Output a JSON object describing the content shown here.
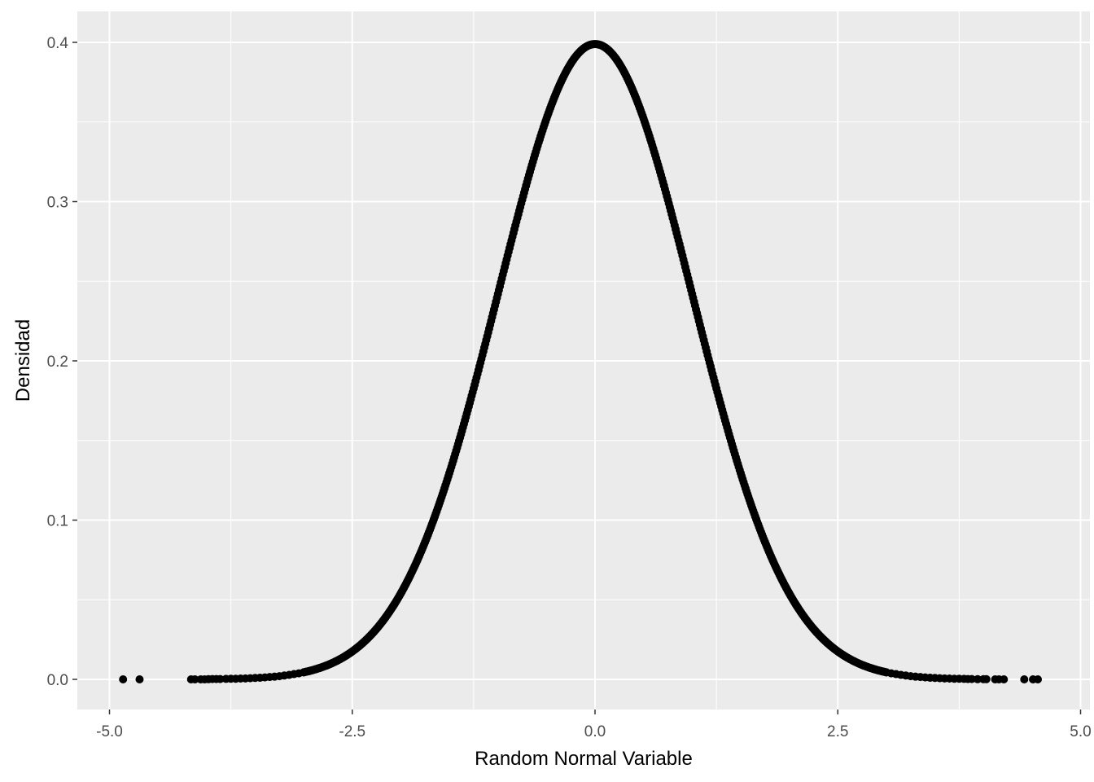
{
  "chart_data": {
    "type": "scatter",
    "title": "",
    "xlabel": "Random Normal Variable",
    "ylabel": "Densidad",
    "xlim": [
      -5.0,
      5.0
    ],
    "ylim": [
      -0.02,
      0.4
    ],
    "x_ticks": [
      -5.0,
      -2.5,
      0.0,
      2.5,
      5.0
    ],
    "x_tick_labels": [
      "-5.0",
      "-2.5",
      "0.0",
      "2.5",
      "5.0"
    ],
    "y_ticks": [
      0.0,
      0.1,
      0.2,
      0.3,
      0.4
    ],
    "y_tick_labels": [
      "0.0",
      "0.1",
      "0.2",
      "0.3",
      "0.4"
    ],
    "grid": true,
    "legend": "none",
    "colors": {
      "panel_background": "#ebebeb",
      "grid": "#ffffff",
      "points": "#000000"
    },
    "series": [
      {
        "values_description_omitted": null,
        "points": [
          {
            "x": -4.86,
            "y": 0.0
          },
          {
            "x": -4.69,
            "y": 0.0
          },
          {
            "x": -4.16,
            "y": 0.0
          },
          {
            "x": -4.12,
            "y": 0.0
          },
          {
            "x": -4.06,
            "y": 0.0
          },
          {
            "x": -4.02,
            "y": 0.0
          },
          {
            "x": -3.98,
            "y": 0.0001
          },
          {
            "x": -3.94,
            "y": 0.0002
          },
          {
            "x": -3.9,
            "y": 0.0002
          },
          {
            "x": -3.86,
            "y": 0.0002
          },
          {
            "x": -3.8,
            "y": 0.0003
          },
          {
            "x": -3.75,
            "y": 0.0004
          },
          {
            "x": -3.7,
            "y": 0.0004
          },
          {
            "x": -3.65,
            "y": 0.0005
          },
          {
            "x": -3.6,
            "y": 0.0006
          },
          {
            "x": -3.55,
            "y": 0.0007
          },
          {
            "x": -3.5,
            "y": 0.0009
          },
          {
            "x": -3.45,
            "y": 0.001
          },
          {
            "x": -3.4,
            "y": 0.0012
          },
          {
            "x": -3.35,
            "y": 0.0015
          },
          {
            "x": -3.3,
            "y": 0.0017
          },
          {
            "x": -3.25,
            "y": 0.002
          },
          {
            "x": -3.2,
            "y": 0.0024
          },
          {
            "x": -3.15,
            "y": 0.0028
          },
          {
            "x": -3.1,
            "y": 0.0033
          },
          {
            "x": -3.05,
            "y": 0.0038
          },
          {
            "x": -3.0,
            "y": 0.0044
          },
          {
            "x": 3.0,
            "y": 0.0044
          },
          {
            "x": 3.05,
            "y": 0.0038
          },
          {
            "x": 3.1,
            "y": 0.0033
          },
          {
            "x": 3.15,
            "y": 0.0028
          },
          {
            "x": 3.2,
            "y": 0.0024
          },
          {
            "x": 3.25,
            "y": 0.002
          },
          {
            "x": 3.3,
            "y": 0.0017
          },
          {
            "x": 3.35,
            "y": 0.0015
          },
          {
            "x": 3.4,
            "y": 0.0012
          },
          {
            "x": 3.45,
            "y": 0.001
          },
          {
            "x": 3.5,
            "y": 0.0009
          },
          {
            "x": 3.55,
            "y": 0.0007
          },
          {
            "x": 3.6,
            "y": 0.0006
          },
          {
            "x": 3.65,
            "y": 0.0005
          },
          {
            "x": 3.7,
            "y": 0.0004
          },
          {
            "x": 3.75,
            "y": 0.0004
          },
          {
            "x": 3.8,
            "y": 0.0003
          },
          {
            "x": 3.84,
            "y": 0.0002
          },
          {
            "x": 3.88,
            "y": 0.0002
          },
          {
            "x": 3.94,
            "y": 0.0001
          },
          {
            "x": 4.0,
            "y": 0.0001
          },
          {
            "x": 4.03,
            "y": 0.0001
          },
          {
            "x": 4.12,
            "y": 0.0
          },
          {
            "x": 4.16,
            "y": 0.0
          },
          {
            "x": 4.21,
            "y": 0.0
          },
          {
            "x": 4.42,
            "y": 0.0
          },
          {
            "x": 4.51,
            "y": 0.0
          },
          {
            "x": 4.56,
            "y": 0.0
          }
        ],
        "dense_range": [
          -3.0,
          3.0
        ],
        "dense_step": 0.01,
        "curve": "standard-normal-density"
      }
    ]
  }
}
